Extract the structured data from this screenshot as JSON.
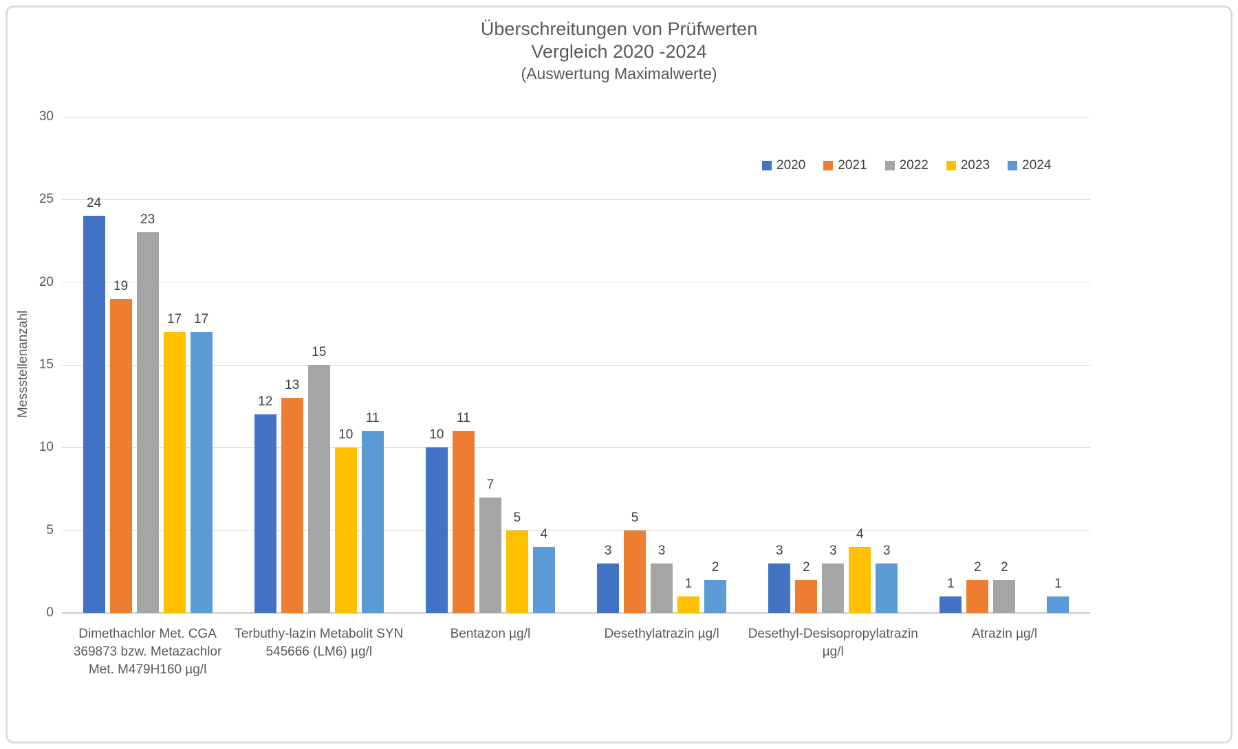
{
  "chart_data": {
    "type": "bar",
    "title": "Überschreitungen von Prüfwerten",
    "subtitle": "Vergleich 2020 -2024",
    "subtitle2": "(Auswertung Maximalwerte)",
    "ylabel": "Messstellenanzahl",
    "ylim": [
      0,
      30
    ],
    "ytick_step": 5,
    "yticks": [
      0,
      5,
      10,
      15,
      20,
      25,
      30
    ],
    "grid": true,
    "legend_position": "top-right",
    "categories": [
      [
        "Dimethachlor Met. CGA",
        "369873 bzw. Metazachlor",
        "Met. M479H160 µg/l"
      ],
      [
        "Terbuthy-lazin Metabolit SYN",
        "545666 (LM6) µg/l"
      ],
      [
        "Bentazon µg/l"
      ],
      [
        "Desethylatrazin µg/l"
      ],
      [
        "Desethyl-Desisopropylatrazin",
        "µg/l"
      ],
      [
        "Atrazin µg/l"
      ]
    ],
    "series": [
      {
        "name": "2020",
        "color": "#4472C4",
        "values": [
          24,
          12,
          10,
          3,
          3,
          1
        ]
      },
      {
        "name": "2021",
        "color": "#ED7D31",
        "values": [
          19,
          13,
          11,
          5,
          2,
          2
        ]
      },
      {
        "name": "2022",
        "color": "#A5A5A5",
        "values": [
          23,
          15,
          7,
          3,
          3,
          2
        ]
      },
      {
        "name": "2023",
        "color": "#FFC000",
        "values": [
          17,
          10,
          5,
          1,
          4,
          0
        ]
      },
      {
        "name": "2024",
        "color": "#5B9BD5",
        "values": [
          17,
          11,
          4,
          2,
          3,
          1
        ]
      }
    ],
    "note": "zero values are drawn as no bar and no label"
  }
}
